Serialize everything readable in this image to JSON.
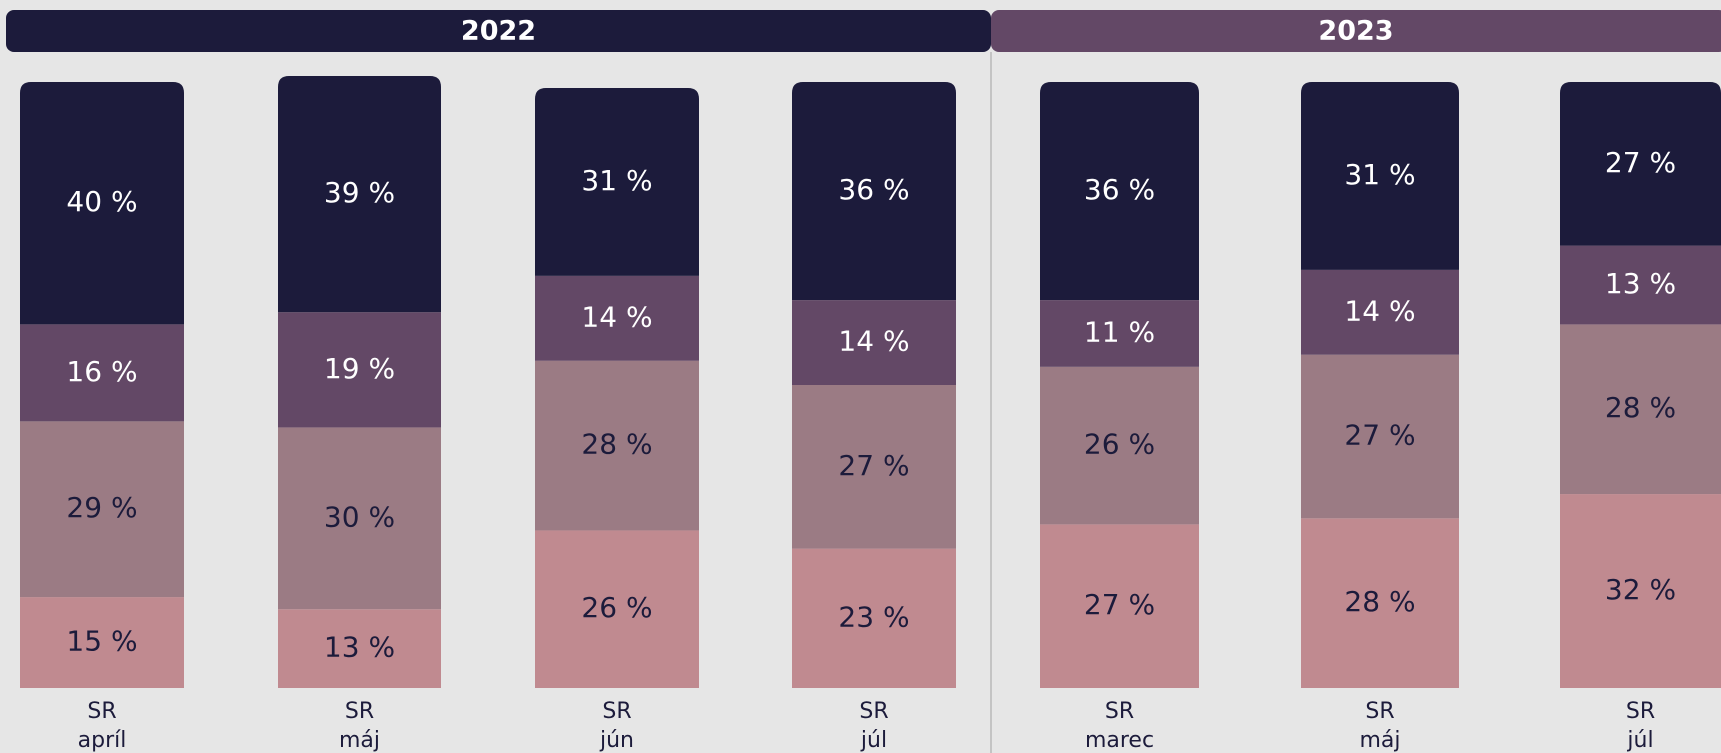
{
  "chart_data": {
    "type": "stacked-bar",
    "groups": [
      {
        "name": "2022",
        "color": "#1c1b3b",
        "categories": [
          [
            "SR",
            "apríl"
          ],
          [
            "SR",
            "máj"
          ],
          [
            "SR",
            "jún"
          ],
          [
            "SR",
            "júl"
          ]
        ]
      },
      {
        "name": "2023",
        "color": "#634866",
        "categories": [
          [
            "SR",
            "marec"
          ],
          [
            "SR",
            "máj"
          ],
          [
            "SR",
            "júl"
          ]
        ]
      }
    ],
    "series": [
      {
        "color": "#c08a90",
        "text_color": "#1c1b3b",
        "values": [
          15,
          13,
          26,
          23,
          27,
          28,
          32
        ],
        "value_labels": [
          "15 %",
          "13 %",
          "26 %",
          "23 %",
          "27 %",
          "28 %",
          "32 %"
        ]
      },
      {
        "color": "#9b7b84",
        "text_color": "#1c1b3b",
        "values": [
          29,
          30,
          28,
          27,
          26,
          27,
          28
        ],
        "value_labels": [
          "29 %",
          "30 %",
          "28 %",
          "27 %",
          "26 %",
          "27 %",
          "28 %"
        ]
      },
      {
        "color": "#634866",
        "text_color": "#ffffff",
        "values": [
          16,
          19,
          14,
          14,
          11,
          14,
          13
        ],
        "value_labels": [
          "16 %",
          "19 %",
          "14 %",
          "14 %",
          "11 %",
          "14 %",
          "13 %"
        ]
      },
      {
        "color": "#1c1b3b",
        "text_color": "#ffffff",
        "values": [
          40,
          39,
          31,
          36,
          36,
          31,
          27
        ],
        "value_labels": [
          "40 %",
          "39 %",
          "31 %",
          "36 %",
          "36 %",
          "31 %",
          "27 %"
        ]
      }
    ]
  }
}
